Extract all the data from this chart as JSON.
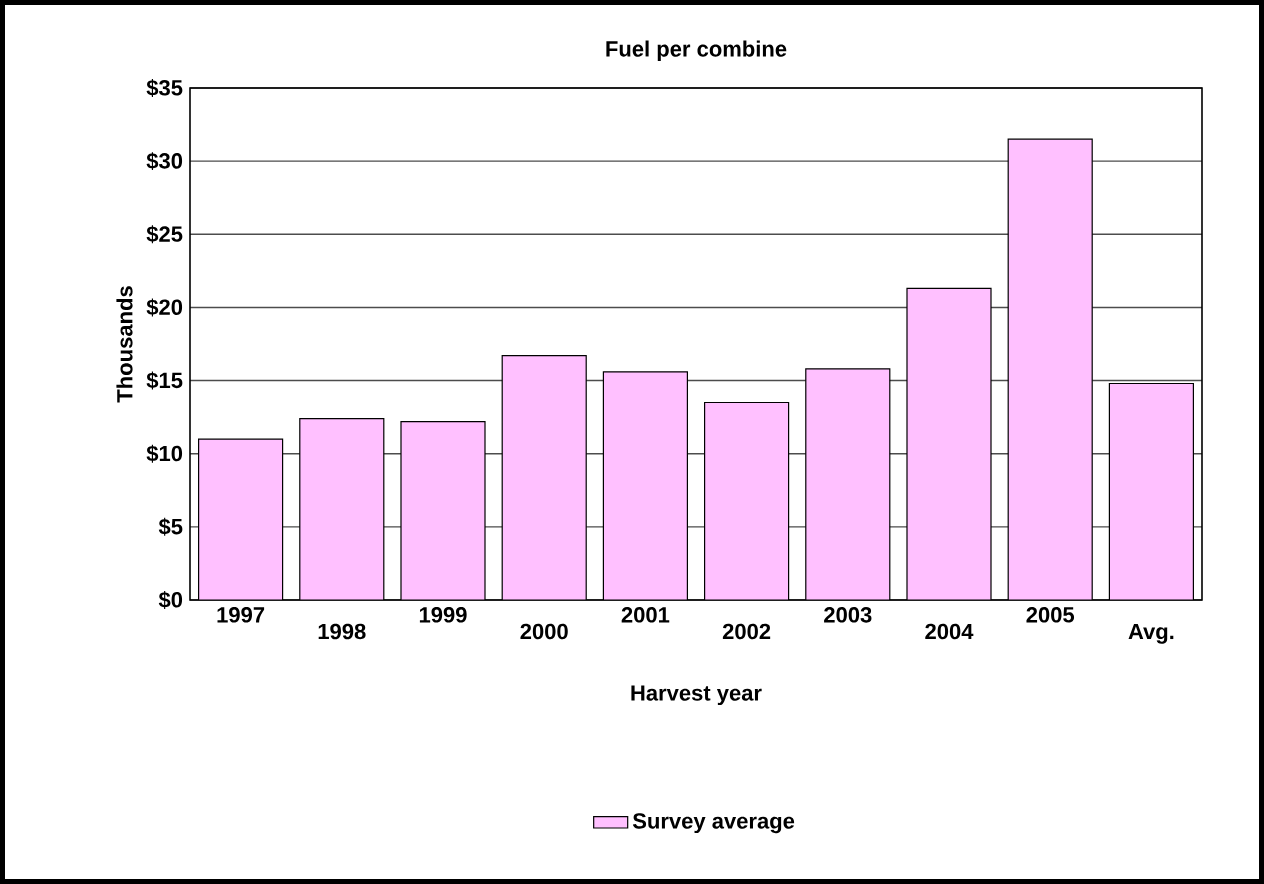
{
  "chart_data": {
    "type": "bar",
    "title": "Fuel per combine",
    "xlabel": "Harvest year",
    "ylabel": "Thousands",
    "categories": [
      "1997",
      "1998",
      "1999",
      "2000",
      "2001",
      "2002",
      "2003",
      "2004",
      "2005",
      "Avg."
    ],
    "series": [
      {
        "name": "Survey average",
        "color": "#ffc0ff",
        "values": [
          11.0,
          12.4,
          12.2,
          16.7,
          15.6,
          13.5,
          15.8,
          21.3,
          31.5,
          14.8
        ]
      }
    ],
    "ylim": [
      0,
      35
    ],
    "yticks": [
      {
        "value": 0,
        "label": "$0"
      },
      {
        "value": 5,
        "label": "$5"
      },
      {
        "value": 10,
        "label": "$10"
      },
      {
        "value": 15,
        "label": "$15"
      },
      {
        "value": 20,
        "label": "$20"
      },
      {
        "value": 25,
        "label": "$25"
      },
      {
        "value": 30,
        "label": "$30"
      },
      {
        "value": 35,
        "label": "$35"
      }
    ],
    "grid": "y",
    "legend": "bottom"
  }
}
